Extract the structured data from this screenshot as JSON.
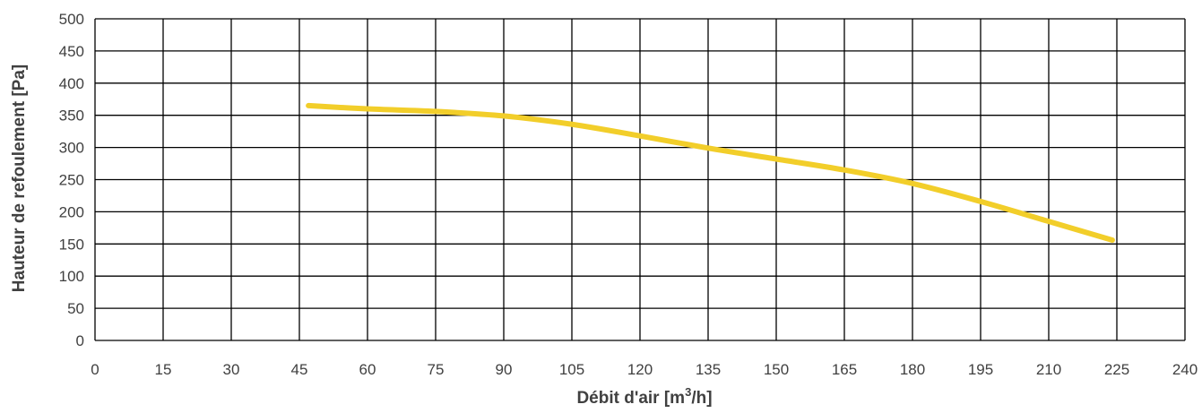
{
  "chart_data": {
    "type": "line",
    "title": "",
    "xlabel_main": "Débit d'air [m",
    "xlabel_sup": "3",
    "xlabel_end": "/h]",
    "ylabel": "Hauteur de refoulement [Pa]",
    "xlim": [
      0,
      240
    ],
    "ylim": [
      0,
      500
    ],
    "xticks": [
      0,
      15,
      30,
      45,
      60,
      75,
      90,
      105,
      120,
      135,
      150,
      165,
      180,
      195,
      210,
      225,
      240
    ],
    "yticks": [
      0,
      50,
      100,
      150,
      200,
      250,
      300,
      350,
      400,
      450,
      500
    ],
    "grid": true,
    "legend": "none",
    "series": [
      {
        "color": "#F2CE2A",
        "x": [
          47,
          60,
          75,
          90,
          105,
          120,
          135,
          150,
          165,
          180,
          195,
          210,
          224
        ],
        "y": [
          365,
          360,
          356,
          349,
          336,
          318,
          299,
          282,
          265,
          244,
          216,
          185,
          156
        ]
      }
    ]
  }
}
